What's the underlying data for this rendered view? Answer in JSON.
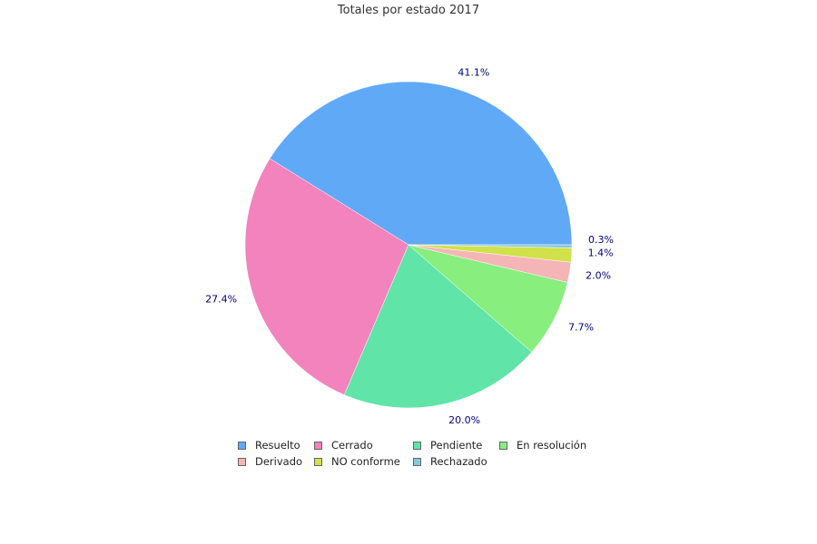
{
  "chart_data": {
    "type": "pie",
    "title": "Totales por estado 2017",
    "series": [
      {
        "name": "Resuelto",
        "value": 41.1,
        "label": "41.1%",
        "color": "#60a9f6"
      },
      {
        "name": "Cerrado",
        "value": 27.4,
        "label": "27.4%",
        "color": "#f283bd"
      },
      {
        "name": "Pendiente",
        "value": 20.0,
        "label": "20.0%",
        "color": "#60e4a7"
      },
      {
        "name": "En resolución",
        "value": 7.7,
        "label": "7.7%",
        "color": "#88ee7e"
      },
      {
        "name": "Derivado",
        "value": 2.0,
        "label": "2.0%",
        "color": "#f5b5b6"
      },
      {
        "name": "NO conforme",
        "value": 1.4,
        "label": "1.4%",
        "color": "#d0e14a"
      },
      {
        "name": "Rechazado",
        "value": 0.3,
        "label": "0.3%",
        "color": "#88c9d8"
      }
    ],
    "label_color": "#000080",
    "legend": "bottom"
  }
}
